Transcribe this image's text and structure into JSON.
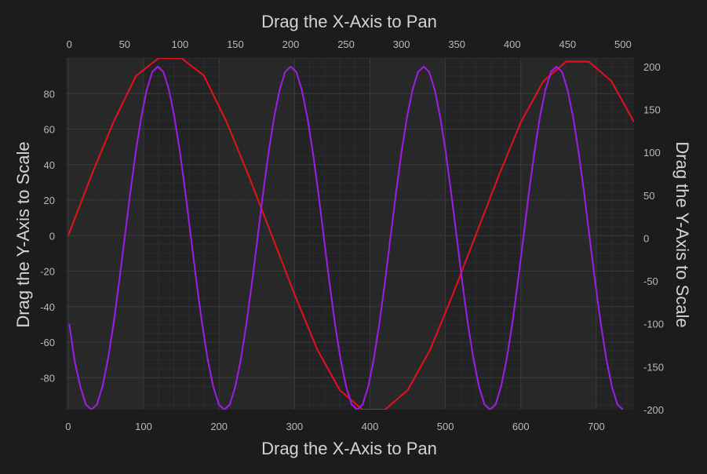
{
  "chart_data": {
    "type": "line",
    "axes": {
      "x_top": {
        "title": "Drag the X-Axis to Pan",
        "range": [
          -3,
          510
        ],
        "ticks": [
          0,
          50,
          100,
          150,
          200,
          250,
          300,
          350,
          400,
          450,
          500
        ]
      },
      "x_bottom": {
        "title": "Drag the X-Axis to Pan",
        "range": [
          -3,
          750
        ],
        "ticks": [
          0,
          100,
          200,
          300,
          400,
          500,
          600,
          700
        ]
      },
      "y_left": {
        "title": "Drag the Y-Axis to Scale",
        "range": [
          -98,
          100
        ],
        "ticks": [
          -80,
          -60,
          -40,
          -20,
          0,
          20,
          40,
          60,
          80
        ]
      },
      "y_right": {
        "title": "Drag the Y-Axis to Scale",
        "range": [
          -200,
          210
        ],
        "ticks": [
          -200,
          -150,
          -100,
          -50,
          0,
          50,
          100,
          150,
          200
        ]
      }
    },
    "series": [
      {
        "axes": [
          "x_bottom",
          "y_left"
        ],
        "color": "#e8101a",
        "x": [
          0,
          30,
          60,
          90,
          120,
          150,
          180,
          210,
          240,
          270,
          300,
          330,
          360,
          390,
          420,
          450,
          480,
          510,
          540,
          570,
          600,
          630,
          660,
          690,
          720,
          750
        ],
        "y": [
          0,
          33,
          64,
          90,
          100,
          100,
          90,
          64,
          33,
          0,
          -33,
          -64,
          -87,
          -98,
          -98,
          -87,
          -64,
          -33,
          0,
          33,
          64,
          87,
          98,
          98,
          87,
          64
        ]
      },
      {
        "axes": [
          "x_top",
          "y_right"
        ],
        "color": "#a21ce8",
        "x": [
          0,
          5,
          10,
          15,
          20,
          25,
          30,
          35,
          40,
          45,
          50,
          55,
          60,
          65,
          70,
          75,
          80,
          85,
          90,
          95,
          100,
          105,
          110,
          115,
          120,
          125,
          130,
          135,
          140,
          145,
          150,
          155,
          160,
          165,
          170,
          175,
          180,
          185,
          190,
          195,
          200,
          205,
          210,
          215,
          220,
          225,
          230,
          235,
          240,
          245,
          250,
          255,
          260,
          265,
          270,
          275,
          280,
          285,
          290,
          295,
          300,
          305,
          310,
          315,
          320,
          325,
          330,
          335,
          340,
          345,
          350,
          355,
          360,
          365,
          370,
          375,
          380,
          385,
          390,
          395,
          400,
          405,
          410,
          415,
          420,
          425,
          430,
          435,
          440,
          445,
          450,
          455,
          460,
          465,
          470,
          475,
          480,
          485,
          490,
          495,
          500
        ],
        "y": [
          -100,
          -144,
          -173,
          -194,
          -200,
          -194,
          -173,
          -141,
          -100,
          -52,
          0,
          52,
          100,
          141,
          173,
          194,
          200,
          194,
          173,
          141,
          100,
          52,
          0,
          -52,
          -100,
          -141,
          -173,
          -194,
          -200,
          -194,
          -173,
          -141,
          -100,
          -52,
          0,
          52,
          100,
          141,
          173,
          194,
          200,
          194,
          173,
          141,
          100,
          52,
          0,
          -52,
          -100,
          -141,
          -173,
          -194,
          -200,
          -194,
          -173,
          -141,
          -100,
          -52,
          0,
          52,
          100,
          141,
          173,
          194,
          200,
          194,
          173,
          141,
          100,
          52,
          0,
          -52,
          -100,
          -141,
          -173,
          -194,
          -200,
          -194,
          -173,
          -141,
          -100,
          -52,
          0,
          52,
          100,
          141,
          173,
          194,
          200,
          194,
          173,
          141,
          100,
          52,
          0,
          -52,
          -100,
          -141,
          -173,
          -194,
          -200
        ]
      }
    ],
    "grid": true,
    "theme": {
      "background": "#1c1c1e",
      "plot_background": "#232325",
      "band": "#282829",
      "gridline": "#3a3a3c",
      "minor_gridline": "#2c2c2e"
    }
  }
}
